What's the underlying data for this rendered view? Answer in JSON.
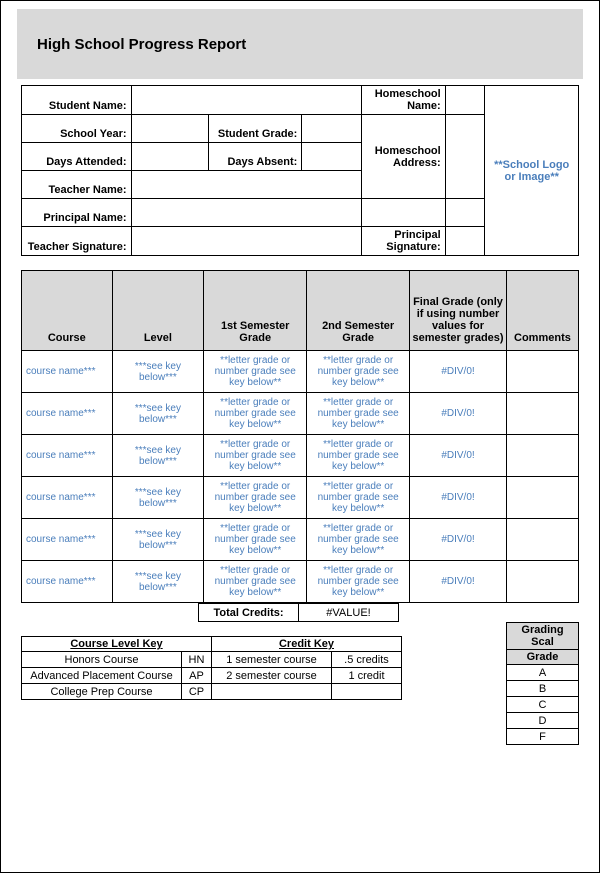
{
  "title": "High School Progress Report",
  "info": {
    "student_name_label": "Student Name:",
    "homeschool_name_label": "Homeschool Name:",
    "school_year_label": "School Year:",
    "student_grade_label": "Student Grade:",
    "days_attended_label": "Days Attended:",
    "days_absent_label": "Days Absent:",
    "homeschool_address_label": "Homeschool Address:",
    "teacher_name_label": "Teacher Name:",
    "principal_name_label": "Principal Name:",
    "teacher_signature_label": "Teacher Signature:",
    "principal_signature_label": "Principal Signature:",
    "logo_placeholder": "**School Logo or Image**"
  },
  "courses": {
    "headers": {
      "course": "Course",
      "level": "Level",
      "sem1": "1st Semester Grade",
      "sem2": "2nd Semester Grade",
      "final": "Final Grade (only if using number values for semester grades)",
      "comments": "Comments"
    },
    "row_placeholder": {
      "course": "course name***",
      "level": "***see key below***",
      "sem": "**letter grade or number grade see key below**",
      "final": "#DIV/0!",
      "comments": ""
    },
    "num_rows": 6,
    "total_credits_label": "Total Credits:",
    "total_credits_value": "#VALUE!",
    "col_widths": {
      "course": 88,
      "level": 89,
      "sem1": 100,
      "sem2": 100,
      "final": 94,
      "comments": 70
    }
  },
  "keys": {
    "course_level_header": "Course Level Key",
    "credit_header": "Credit Key",
    "course_levels": [
      {
        "name": "Honors Course",
        "code": "HN"
      },
      {
        "name": "Advanced Placement Course",
        "code": "AP"
      },
      {
        "name": "College Prep Course",
        "code": "CP"
      }
    ],
    "credits": [
      {
        "desc": "1 semester course",
        "val": ".5 credits"
      },
      {
        "desc": "2 semester course",
        "val": "1 credit"
      },
      {
        "desc": "",
        "val": ""
      }
    ],
    "grading_header1": "Grading Scal",
    "grading_header2": "Grade",
    "grades": [
      "A",
      "B",
      "C",
      "D",
      "F"
    ],
    "key_col_widths": {
      "name": 160,
      "code": 30,
      "desc": 120,
      "val": 70,
      "grade": 60
    }
  },
  "colors": {
    "header_bg": "#d9d9d9",
    "placeholder_text": "#4a7ebb",
    "border": "#000000"
  }
}
